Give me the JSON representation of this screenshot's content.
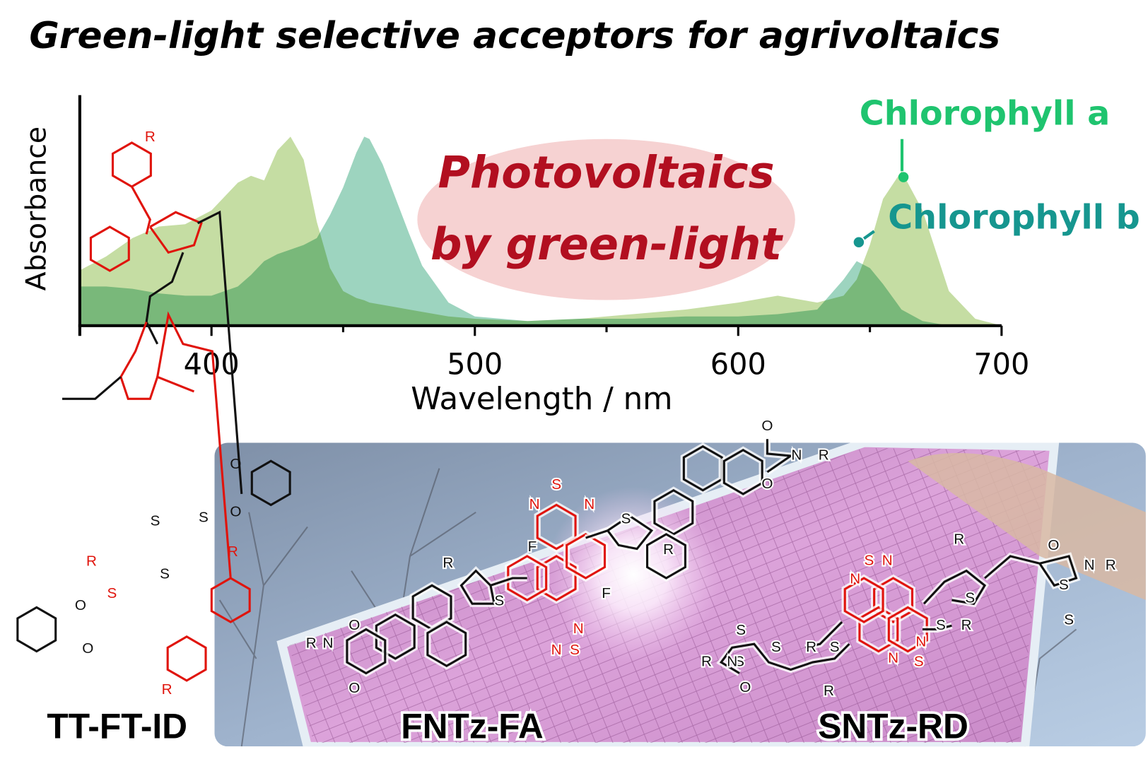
{
  "title": "Green-light selective acceptors for agrivoltaics",
  "chart_data": {
    "type": "area",
    "ylabel": "Absorbance",
    "xlabel": "Wavelength / nm",
    "x": [
      350,
      360,
      370,
      380,
      390,
      400,
      410,
      415,
      420,
      425,
      430,
      435,
      440,
      445,
      450,
      455,
      458,
      460,
      465,
      470,
      475,
      480,
      490,
      500,
      520,
      540,
      560,
      580,
      600,
      615,
      630,
      640,
      645,
      650,
      655,
      662,
      670,
      680,
      690,
      700
    ],
    "series": [
      {
        "name": "Chlorophyll a",
        "color": "#c5dda3",
        "label_color": "#1fc46f",
        "values": [
          0.24,
          0.3,
          0.38,
          0.43,
          0.44,
          0.5,
          0.62,
          0.65,
          0.63,
          0.76,
          0.82,
          0.72,
          0.45,
          0.25,
          0.15,
          0.12,
          0.11,
          0.1,
          0.09,
          0.08,
          0.07,
          0.06,
          0.04,
          0.03,
          0.02,
          0.03,
          0.05,
          0.07,
          0.1,
          0.13,
          0.1,
          0.13,
          0.2,
          0.35,
          0.55,
          0.67,
          0.5,
          0.15,
          0.03,
          0
        ]
      },
      {
        "name": "Chlorophyll b",
        "color": "#9dd4bf",
        "label_color": "#16968f",
        "values": [
          0.17,
          0.17,
          0.16,
          0.14,
          0.13,
          0.13,
          0.17,
          0.22,
          0.28,
          0.31,
          0.33,
          0.35,
          0.38,
          0.48,
          0.6,
          0.75,
          0.82,
          0.81,
          0.7,
          0.55,
          0.4,
          0.26,
          0.1,
          0.04,
          0.02,
          0.03,
          0.03,
          0.04,
          0.04,
          0.05,
          0.07,
          0.2,
          0.28,
          0.25,
          0.18,
          0.07,
          0.02,
          0,
          0,
          0
        ]
      }
    ],
    "xlim": [
      350,
      700
    ],
    "ylim": [
      0,
      1
    ],
    "xticks": [
      400,
      500,
      600,
      700
    ],
    "xminor": [
      350,
      450,
      550,
      650
    ],
    "annotation": [
      "Photovoltaics",
      "by green-light"
    ]
  },
  "compounds": [
    {
      "name": "TT-FT-ID",
      "atoms": [
        "R",
        "O",
        "O",
        "S",
        "S",
        "S",
        "R",
        "R",
        "O",
        "O",
        "S",
        "R"
      ]
    },
    {
      "name": "FNTz-FA",
      "atoms": [
        "O",
        "N",
        "R",
        "O",
        "S",
        "N",
        "N",
        "S",
        "R",
        "F",
        "F",
        "R",
        "S",
        "N",
        "N",
        "S",
        "O",
        "N",
        "R",
        "O"
      ]
    },
    {
      "name": "SNTz-RD",
      "atoms": [
        "R",
        "O",
        "N",
        "R",
        "S",
        "S",
        "S",
        "S",
        "N",
        "N",
        "R",
        "S",
        "S",
        "R",
        "S",
        "N",
        "N",
        "S",
        "S",
        "S",
        "N",
        "R",
        "O",
        "R"
      ]
    }
  ]
}
